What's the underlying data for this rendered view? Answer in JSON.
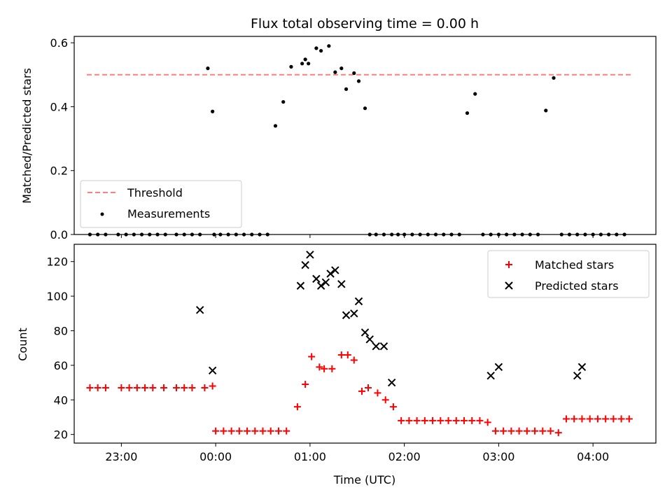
{
  "chart_data": [
    {
      "type": "scatter",
      "title": "Flux total observing time = 0.00 h",
      "xlabel": "",
      "ylabel": "Matched/Predicted stars",
      "xlim": [
        "22:30",
        "04:40"
      ],
      "ylim": [
        0,
        0.62
      ],
      "yticks": [
        "0.0",
        "0.2",
        "0.4",
        "0.6"
      ],
      "grid": false,
      "legend": "lower-left",
      "threshold": {
        "name": "Threshold",
        "value": 0.5,
        "x_range": [
          "22:38",
          "04:24"
        ],
        "color": "#ff7f7f"
      },
      "series": [
        {
          "name": "Measurements",
          "color": "#000000",
          "x": [
            "22:40",
            "22:45",
            "22:50",
            "22:58",
            "23:03",
            "23:08",
            "23:13",
            "23:18",
            "23:23",
            "23:28",
            "23:35",
            "23:40",
            "23:45",
            "23:50",
            "23:55",
            "23:58",
            "23:59",
            "00:03",
            "00:08",
            "00:13",
            "00:18",
            "00:23",
            "00:28",
            "00:33",
            "00:38",
            "00:43",
            "00:48",
            "00:55",
            "00:57",
            "00:59",
            "01:04",
            "01:07",
            "01:12",
            "01:16",
            "01:20",
            "01:23",
            "01:28",
            "01:31",
            "01:35",
            "01:38",
            "01:42",
            "01:47",
            "01:52",
            "01:56",
            "02:00",
            "02:05",
            "02:10",
            "02:15",
            "02:20",
            "02:25",
            "02:30",
            "02:35",
            "02:40",
            "02:45",
            "02:50",
            "02:55",
            "03:00",
            "03:05",
            "03:10",
            "03:15",
            "03:20",
            "03:25",
            "03:30",
            "03:35",
            "03:40",
            "03:45",
            "03:50",
            "03:55",
            "04:00",
            "04:05",
            "04:10",
            "04:15",
            "04:20"
          ],
          "y": [
            0,
            0,
            0,
            0,
            0,
            0,
            0,
            0,
            0,
            0,
            0,
            0,
            0,
            0,
            0.52,
            0.385,
            0,
            0,
            0,
            0,
            0,
            0,
            0,
            0,
            0.34,
            0.415,
            0.525,
            0.535,
            0.548,
            0.535,
            0.583,
            0.575,
            0.59,
            0.508,
            0.52,
            0.455,
            0.505,
            0.48,
            0.395,
            0,
            0,
            0,
            0,
            0,
            0,
            0,
            0,
            0,
            0,
            0,
            0,
            0,
            0.38,
            0.44,
            0,
            0,
            0,
            0,
            0,
            0,
            0,
            0,
            0.388,
            0.49,
            0,
            0,
            0,
            0,
            0,
            0,
            0,
            0,
            0
          ]
        }
      ]
    },
    {
      "type": "scatter",
      "title": "",
      "xlabel": "Time (UTC)",
      "ylabel": "Count",
      "xlim": [
        "22:30",
        "04:40"
      ],
      "ylim": [
        15,
        130
      ],
      "xticks": [
        "23:00",
        "00:00",
        "01:00",
        "02:00",
        "03:00",
        "04:00"
      ],
      "yticks": [
        "20",
        "40",
        "60",
        "80",
        "100",
        "120"
      ],
      "grid": false,
      "legend": "upper-right",
      "series": [
        {
          "name": "Matched stars",
          "marker": "+",
          "color": "#ff0000",
          "x": [
            "22:40",
            "22:45",
            "22:50",
            "23:00",
            "23:05",
            "23:10",
            "23:15",
            "23:20",
            "23:27",
            "23:35",
            "23:40",
            "23:45",
            "23:53",
            "23:58",
            "00:00",
            "00:05",
            "00:10",
            "00:15",
            "00:20",
            "00:25",
            "00:30",
            "00:35",
            "00:40",
            "00:45",
            "00:52",
            "00:57",
            "01:01",
            "01:06",
            "01:09",
            "01:14",
            "01:20",
            "01:24",
            "01:28",
            "01:33",
            "01:37",
            "01:43",
            "01:48",
            "01:53",
            "01:58",
            "02:03",
            "02:08",
            "02:13",
            "02:18",
            "02:23",
            "02:28",
            "02:33",
            "02:38",
            "02:43",
            "02:48",
            "02:53",
            "02:58",
            "03:03",
            "03:08",
            "03:13",
            "03:18",
            "03:23",
            "03:28",
            "03:33",
            "03:38",
            "03:43",
            "03:48",
            "03:53",
            "03:58",
            "04:03",
            "04:08",
            "04:13",
            "04:18",
            "04:23"
          ],
          "y": [
            47,
            47,
            47,
            47,
            47,
            47,
            47,
            47,
            47,
            47,
            47,
            47,
            47,
            48,
            22,
            22,
            22,
            22,
            22,
            22,
            22,
            22,
            22,
            22,
            36,
            49,
            65,
            59,
            58,
            58,
            66,
            66,
            63,
            45,
            47,
            44,
            40,
            36,
            28,
            28,
            28,
            28,
            28,
            28,
            28,
            28,
            28,
            28,
            28,
            27,
            22,
            22,
            22,
            22,
            22,
            22,
            22,
            22,
            21,
            29,
            29,
            29,
            29,
            29,
            29,
            29,
            29,
            29
          ]
        },
        {
          "name": "Predicted stars",
          "marker": "x",
          "color": "#000000",
          "x": [
            "23:50",
            "23:58",
            "00:54",
            "00:57",
            "01:00",
            "01:04",
            "01:07",
            "01:10",
            "01:13",
            "01:16",
            "01:20",
            "01:23",
            "01:28",
            "01:31",
            "01:35",
            "01:38",
            "01:42",
            "01:47",
            "01:52",
            "02:55",
            "03:00",
            "03:50",
            "03:53"
          ],
          "y": [
            92,
            57,
            106,
            118,
            124,
            110,
            106,
            108,
            113,
            115,
            107,
            89,
            90,
            97,
            79,
            75,
            71,
            71,
            50,
            54,
            59,
            54,
            59
          ]
        }
      ]
    }
  ]
}
